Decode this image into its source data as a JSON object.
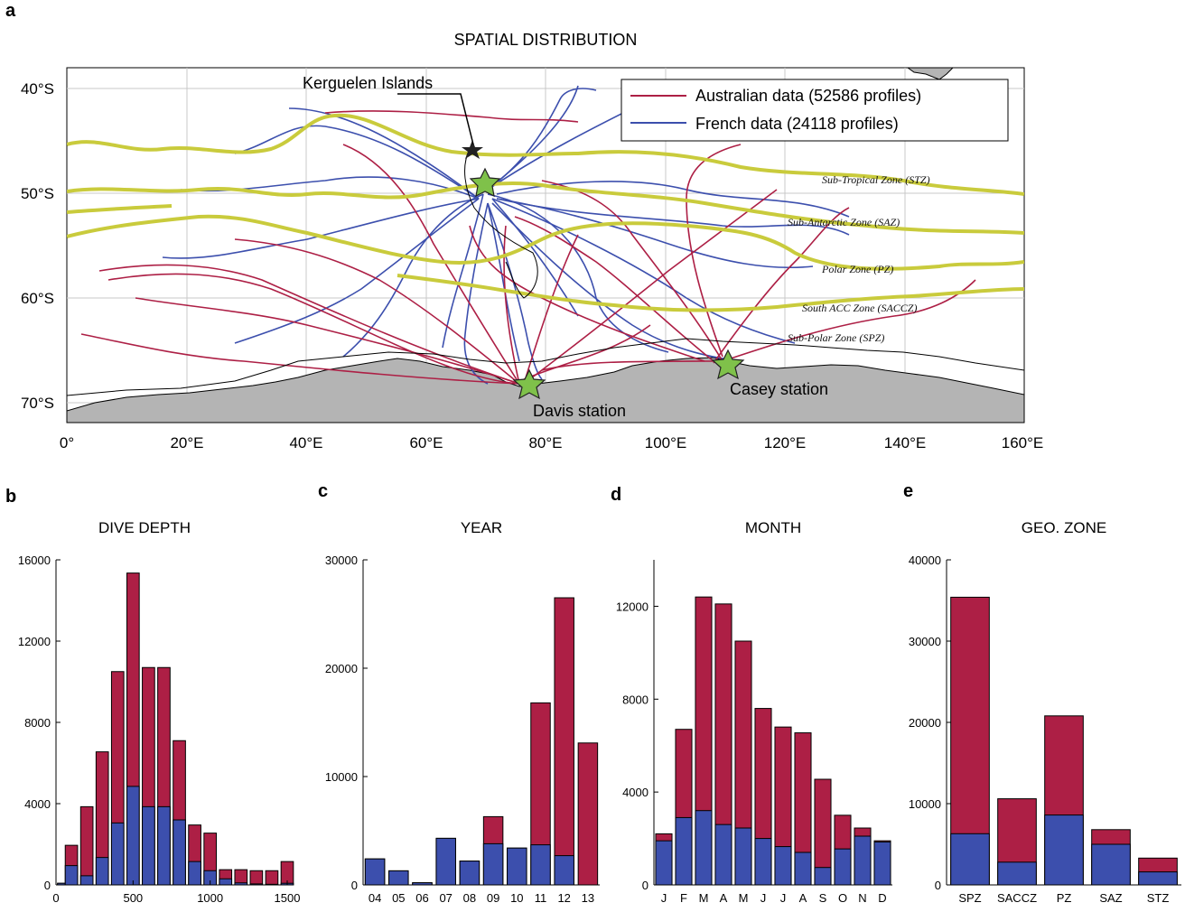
{
  "colors": {
    "australian": "#ad1f45",
    "french": "#3c4fad",
    "front": "#c9cb3c",
    "land": "#b4b4b4",
    "star": "#7fc14a"
  },
  "panel_a": {
    "letter": "a",
    "title": "SPATIAL DISTRIBUTION",
    "legend": [
      "Australian data (52586 profiles)",
      "French data (24118 profiles)"
    ],
    "lat_labels": [
      "40°S",
      "50°S",
      "60°S",
      "70°S"
    ],
    "lon_labels": [
      "0°",
      "20°E",
      "40°E",
      "60°E",
      "80°E",
      "100°E",
      "120°E",
      "140°E",
      "160°E"
    ],
    "zones": [
      "Sub-Tropical Zone (STZ)",
      "Sub-Antarctic Zone (SAZ)",
      "Polar Zone (PZ)",
      "South ACC Zone (SACCZ)",
      "Sub-Polar Zone (SPZ)"
    ],
    "places": [
      "Kerguelen Islands",
      "Davis station",
      "Casey station"
    ]
  },
  "chart_data": [
    {
      "panel": "b",
      "type": "bar",
      "title": "DIVE DEPTH",
      "x": [
        50,
        100,
        200,
        300,
        400,
        500,
        600,
        700,
        800,
        900,
        1000,
        1100,
        1200,
        1300,
        1400,
        1500
      ],
      "series": [
        {
          "name": "French data (24118 profiles)",
          "values": [
            80,
            950,
            450,
            1350,
            3050,
            4850,
            3850,
            3850,
            3200,
            1150,
            700,
            300,
            100,
            50,
            30,
            80
          ]
        },
        {
          "name": "Australian data (52586 profiles)",
          "values": [
            80,
            1950,
            3850,
            6550,
            10500,
            15350,
            10700,
            10700,
            7100,
            2950,
            2550,
            750,
            750,
            700,
            700,
            1150
          ]
        }
      ],
      "xlim": [
        0,
        1500
      ],
      "ylim": [
        0,
        16000
      ],
      "xticks": [
        "0",
        "500",
        "1000",
        "1500"
      ],
      "yticks": [
        "0",
        "4000",
        "8000",
        "12000",
        "16000"
      ]
    },
    {
      "panel": "c",
      "type": "bar",
      "title": "YEAR",
      "categories": [
        "04",
        "05",
        "06",
        "07",
        "08",
        "09",
        "10",
        "11",
        "12",
        "13"
      ],
      "series": [
        {
          "name": "French data (24118 profiles)",
          "values": [
            2400,
            1300,
            200,
            4300,
            2200,
            3800,
            3400,
            3700,
            2700,
            0
          ]
        },
        {
          "name": "Australian data (52586 profiles)",
          "values": [
            2400,
            1300,
            200,
            4300,
            2200,
            6300,
            3400,
            16800,
            26500,
            13100
          ]
        }
      ],
      "ylim": [
        0,
        30000
      ],
      "yticks": [
        "0",
        "10000",
        "20000",
        "30000"
      ]
    },
    {
      "panel": "d",
      "type": "bar",
      "title": "MONTH",
      "categories": [
        "J",
        "F",
        "M",
        "A",
        "M",
        "J",
        "J",
        "A",
        "S",
        "O",
        "N",
        "D"
      ],
      "series": [
        {
          "name": "French data (24118 profiles)",
          "values": [
            1900,
            2900,
            3200,
            2600,
            2450,
            2000,
            1650,
            1400,
            750,
            1550,
            2100,
            1850
          ]
        },
        {
          "name": "Australian data (52586 profiles)",
          "values": [
            2200,
            6700,
            12400,
            12100,
            10500,
            7600,
            6800,
            6550,
            4550,
            3000,
            2450,
            1900
          ]
        }
      ],
      "ylim": [
        0,
        14000
      ],
      "yticks": [
        "0",
        "4000",
        "8000",
        "12000"
      ]
    },
    {
      "panel": "e",
      "type": "bar",
      "title": "GEO. ZONE",
      "categories": [
        "SPZ",
        "SACCZ",
        "PZ",
        "SAZ",
        "STZ"
      ],
      "series": [
        {
          "name": "French data (24118 profiles)",
          "values": [
            6300,
            2800,
            8600,
            5000,
            1600
          ]
        },
        {
          "name": "Australian data (52586 profiles)",
          "values": [
            35400,
            10600,
            20800,
            6800,
            3300
          ]
        }
      ],
      "ylim": [
        0,
        40000
      ],
      "yticks": [
        "0",
        "10000",
        "20000",
        "30000",
        "40000"
      ]
    }
  ]
}
